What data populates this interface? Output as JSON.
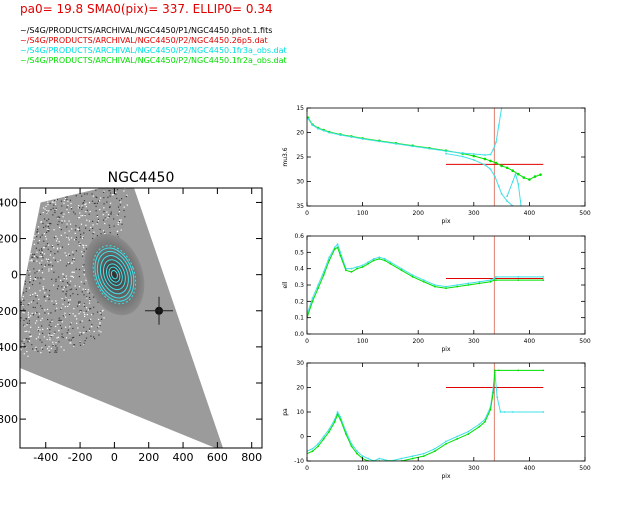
{
  "header": {
    "params": "pa0= 19.8  SMA0(pix)= 337.  ELLIP0= 0.34",
    "files": [
      {
        "text": "~/S4G/PRODUCTS/ARCHIVAL/NGC4450/P1/NGC4450.phot.1.fits",
        "color": "#000000"
      },
      {
        "text": "~/S4G/PRODUCTS/ARCHIVAL/NGC4450/P2/NGC4450.26p5.dat",
        "color": "#e00000"
      },
      {
        "text": "~/S4G/PRODUCTS/ARCHIVAL/NGC4450/P2/NGC4450.1fr3a_obs.dat",
        "color": "#00e0e0"
      },
      {
        "text": "~/S4G/PRODUCTS/ARCHIVAL/NGC4450/P2/NGC4450.1fr2a_obs.dat",
        "color": "#00e000"
      }
    ]
  },
  "colors": {
    "red": "#e00000",
    "cyan": "#40e0e8",
    "green": "#00e000",
    "vline": "#e08070",
    "image_gray": "#7a7a7a"
  },
  "image_panel": {
    "title": "NGC4450",
    "xlim": [
      -550,
      860
    ],
    "ylim": [
      -960,
      480
    ],
    "xticks": [
      -400,
      -200,
      0,
      200,
      400,
      600,
      800
    ],
    "xtick_labels": [
      "-400",
      "-200",
      "0",
      "200",
      "400",
      "600",
      "800"
    ],
    "yticks": [
      400,
      200,
      0,
      -200,
      -400,
      -600,
      -800
    ],
    "ytick_labels": [
      "400",
      "200",
      "0",
      "200",
      "400",
      "600",
      "800"
    ],
    "isophote_sma": [
      25,
      45,
      65,
      90,
      115,
      140,
      160
    ],
    "isophote_ellip": 0.34,
    "isophote_pa": 19.8
  },
  "chart_data": [
    {
      "type": "line",
      "xlabel": "pix",
      "ylabel": "mu3.6",
      "xlim": [
        0,
        500
      ],
      "ylim": [
        35,
        15
      ],
      "xticks": [
        0,
        100,
        200,
        300,
        400,
        500
      ],
      "yticks": [
        15,
        20,
        25,
        30,
        35
      ],
      "vline_x": 337,
      "hline": {
        "y": 26.5,
        "x0": 250,
        "x1": 425
      },
      "series": [
        {
          "color_key": "green",
          "style": "points",
          "x": [
            2,
            10,
            20,
            30,
            40,
            60,
            80,
            100,
            130,
            160,
            190,
            220,
            250,
            280,
            300,
            320,
            330,
            340,
            350,
            360,
            370,
            380,
            390,
            400,
            410,
            420
          ],
          "y": [
            17.0,
            18.4,
            19.1,
            19.5,
            19.9,
            20.4,
            20.8,
            21.2,
            21.7,
            22.2,
            22.7,
            23.2,
            23.7,
            24.3,
            24.8,
            25.4,
            25.8,
            26.2,
            26.8,
            27.2,
            27.8,
            28.5,
            29.2,
            29.6,
            29.0,
            28.6
          ]
        },
        {
          "color_key": "cyan",
          "style": "line",
          "x": [
            2,
            10,
            20,
            30,
            40,
            60,
            80,
            100,
            130,
            160,
            190,
            220,
            250,
            280,
            300,
            320,
            330,
            335,
            340,
            345,
            350
          ],
          "y": [
            17.2,
            18.5,
            19.2,
            19.6,
            20.0,
            20.5,
            20.9,
            21.3,
            21.8,
            22.3,
            22.8,
            23.3,
            23.8,
            24.2,
            24.4,
            24.6,
            24.5,
            23.5,
            22.0,
            18.5,
            15.0
          ]
        },
        {
          "color_key": "cyan",
          "style": "line",
          "x": [
            250,
            280,
            300,
            320,
            330,
            338,
            345,
            350,
            360,
            370
          ],
          "y": [
            24.3,
            24.9,
            25.6,
            26.6,
            27.5,
            29.0,
            31.0,
            32.5,
            34.0,
            35.0
          ]
        },
        {
          "color_key": "cyan",
          "style": "line",
          "x": [
            360,
            370,
            375,
            380,
            385
          ],
          "y": [
            33.0,
            30.0,
            28.5,
            30.5,
            35.0
          ]
        }
      ]
    },
    {
      "type": "line",
      "xlabel": "pix",
      "ylabel": "ell",
      "xlim": [
        0,
        500
      ],
      "ylim": [
        0.0,
        0.6
      ],
      "xticks": [
        0,
        100,
        200,
        300,
        400,
        500
      ],
      "yticks": [
        0.0,
        0.1,
        0.2,
        0.3,
        0.4,
        0.5,
        0.6
      ],
      "vline_x": 337,
      "hline": {
        "y": 0.34,
        "x0": 250,
        "x1": 425
      },
      "series": [
        {
          "color_key": "cyan",
          "style": "line",
          "x": [
            0,
            10,
            20,
            30,
            40,
            50,
            55,
            60,
            70,
            80,
            90,
            100,
            110,
            120,
            130,
            140,
            150,
            170,
            190,
            210,
            230,
            250,
            270,
            290,
            310,
            330,
            337,
            340,
            380,
            425
          ],
          "y": [
            0.12,
            0.22,
            0.3,
            0.38,
            0.47,
            0.53,
            0.55,
            0.5,
            0.4,
            0.4,
            0.41,
            0.42,
            0.44,
            0.46,
            0.47,
            0.46,
            0.44,
            0.4,
            0.36,
            0.33,
            0.3,
            0.29,
            0.3,
            0.31,
            0.32,
            0.33,
            0.34,
            0.35,
            0.35,
            0.35
          ]
        },
        {
          "color_key": "green",
          "style": "line",
          "x": [
            0,
            10,
            20,
            30,
            40,
            50,
            55,
            60,
            70,
            80,
            90,
            100,
            110,
            120,
            130,
            140,
            150,
            170,
            190,
            210,
            230,
            250,
            270,
            290,
            310,
            330,
            337,
            340,
            380,
            425
          ],
          "y": [
            0.1,
            0.2,
            0.28,
            0.36,
            0.45,
            0.52,
            0.53,
            0.48,
            0.39,
            0.38,
            0.4,
            0.41,
            0.43,
            0.45,
            0.46,
            0.45,
            0.43,
            0.39,
            0.35,
            0.32,
            0.29,
            0.28,
            0.29,
            0.3,
            0.31,
            0.32,
            0.33,
            0.33,
            0.33,
            0.33
          ]
        }
      ]
    },
    {
      "type": "line",
      "xlabel": "pix",
      "ylabel": "pa",
      "xlim": [
        0,
        500
      ],
      "ylim": [
        -10,
        30
      ],
      "xticks": [
        0,
        100,
        200,
        300,
        400,
        500
      ],
      "yticks": [
        -10,
        0,
        10,
        20,
        30
      ],
      "vline_x": 337,
      "hline": {
        "y": 20,
        "x0": 250,
        "x1": 425
      },
      "series": [
        {
          "color_key": "cyan",
          "style": "line",
          "x": [
            0,
            10,
            20,
            30,
            40,
            50,
            55,
            60,
            70,
            80,
            90,
            100,
            110,
            120,
            130,
            150,
            170,
            190,
            210,
            230,
            250,
            270,
            290,
            310,
            320,
            330,
            335,
            338,
            342,
            348,
            355,
            370,
            425
          ],
          "y": [
            -6,
            -5,
            -3,
            0,
            3,
            7,
            10,
            8,
            2,
            -3,
            -6,
            -8,
            -9,
            -10,
            -9,
            -10,
            -9,
            -8,
            -7,
            -5,
            -2,
            0,
            2,
            5,
            7,
            12,
            20,
            26,
            16,
            10,
            10,
            10,
            10
          ]
        },
        {
          "color_key": "green",
          "style": "line",
          "x": [
            0,
            10,
            20,
            30,
            40,
            50,
            55,
            60,
            70,
            80,
            90,
            100,
            110,
            120,
            130,
            150,
            170,
            190,
            210,
            230,
            250,
            270,
            290,
            310,
            320,
            330,
            335,
            338,
            345,
            380,
            425
          ],
          "y": [
            -7,
            -6,
            -4,
            -1,
            2,
            6,
            9,
            7,
            1,
            -4,
            -7,
            -9,
            -10,
            -10,
            -10,
            -10,
            -10,
            -9,
            -8,
            -6,
            -3,
            -1,
            1,
            4,
            6,
            11,
            18,
            27,
            27,
            27,
            27
          ]
        }
      ]
    }
  ]
}
